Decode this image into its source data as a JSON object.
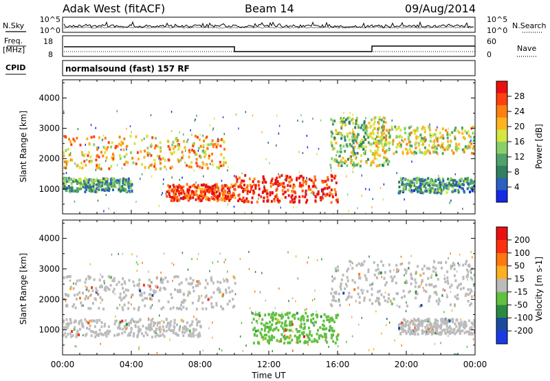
{
  "header": {
    "station": "Adak West (fitACF)",
    "beam": "Beam 14",
    "date": "09/Aug/2014"
  },
  "side_labels": {
    "nsky": "N.Sky",
    "nsearch": "N.Search",
    "freq": "Freq.",
    "freq_unit": "[MHz]",
    "nave": "Nave",
    "cpid": "CPID"
  },
  "noise_panel": {
    "left_ticks": [
      "10^5",
      "10^0"
    ],
    "right_ticks": [
      "10^5",
      "10^0"
    ]
  },
  "freq_panel": {
    "left_ticks": [
      "18",
      "8"
    ],
    "right_ticks": [
      "60",
      "0"
    ]
  },
  "cpid_text": "normalsound (fast) 157 RF",
  "chart_data": [
    {
      "type": "heatmap",
      "title": "",
      "xlabel": "Time UT",
      "ylabel": "Slant Range [km]",
      "x_ticks": [
        "00:00",
        "04:00",
        "08:00",
        "12:00",
        "16:00",
        "20:00",
        "00:00"
      ],
      "y_ticks": [
        "1000",
        "2000",
        "3000",
        "4000"
      ],
      "xlim_hours": [
        0,
        24
      ],
      "ylim_km": [
        180,
        4600
      ],
      "colorbar": {
        "label": "Power [dB]",
        "ticks": [
          "4",
          "8",
          "12",
          "16",
          "20",
          "24",
          "28"
        ],
        "range": [
          0,
          30
        ],
        "colors": [
          "#1428e6",
          "#2b5fc0",
          "#2f7f60",
          "#4fa26a",
          "#8ad06a",
          "#d4e640",
          "#ffb41e",
          "#ff8010",
          "#ff4010",
          "#e81010"
        ]
      },
      "regions": [
        {
          "t": [
            0,
            4
          ],
          "r": [
            950,
            1400
          ],
          "value": 10
        },
        {
          "t": [
            0,
            9.5
          ],
          "r": [
            1700,
            2800
          ],
          "value": 20
        },
        {
          "t": [
            6,
            10
          ],
          "r": [
            650,
            1200
          ],
          "value": 26
        },
        {
          "t": [
            10,
            16
          ],
          "r": [
            600,
            1500
          ],
          "value": 28
        },
        {
          "t": [
            15.5,
            19
          ],
          "r": [
            1800,
            3400
          ],
          "value": 14
        },
        {
          "t": [
            18,
            24
          ],
          "r": [
            2200,
            3100
          ],
          "value": 16
        },
        {
          "t": [
            19.5,
            24
          ],
          "r": [
            900,
            1400
          ],
          "value": 9
        }
      ]
    },
    {
      "type": "heatmap",
      "title": "",
      "xlabel": "Time UT",
      "ylabel": "Slant Range [km]",
      "x_ticks": [
        "00:00",
        "04:00",
        "08:00",
        "12:00",
        "16:00",
        "20:00",
        "00:00"
      ],
      "y_ticks": [
        "1000",
        "2000",
        "3000",
        "4000"
      ],
      "xlim_hours": [
        0,
        24
      ],
      "ylim_km": [
        180,
        4600
      ],
      "colorbar": {
        "label": "Velocity [m s-1]",
        "ticks": [
          "200",
          "100",
          "50",
          "15",
          "-15",
          "-50",
          "-100",
          "-200"
        ],
        "range": [
          -250,
          250
        ],
        "colors": [
          "#1a3ae6",
          "#1a4aa0",
          "#2a8a40",
          "#60c040",
          "#bbbbbb",
          "#ffb020",
          "#ff7810",
          "#ff3010",
          "#e81010"
        ]
      },
      "regions": [
        {
          "t": [
            0,
            10
          ],
          "r": [
            1700,
            2800
          ],
          "value": 0
        },
        {
          "t": [
            0,
            8
          ],
          "r": [
            800,
            1400
          ],
          "value": 0
        },
        {
          "t": [
            11,
            16
          ],
          "r": [
            600,
            1600
          ],
          "value": -60
        },
        {
          "t": [
            15.5,
            24
          ],
          "r": [
            1800,
            3300
          ],
          "value": 0
        },
        {
          "t": [
            19.5,
            24
          ],
          "r": [
            900,
            1400
          ],
          "value": 0
        }
      ]
    }
  ]
}
